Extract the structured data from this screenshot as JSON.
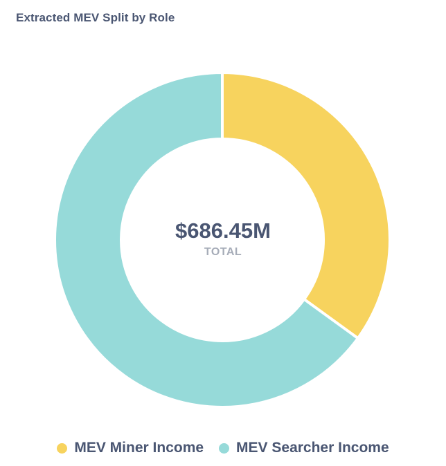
{
  "chart_data": {
    "type": "pie",
    "title": "Extracted MEV Split by Role",
    "center_value": "$686.45M",
    "center_label": "TOTAL",
    "categories": [
      "MEV Miner Income",
      "MEV Searcher Income"
    ],
    "values": [
      0.35,
      0.65
    ],
    "colors": [
      "#f7d35e",
      "#96dad9"
    ],
    "legend_position": "bottom"
  }
}
